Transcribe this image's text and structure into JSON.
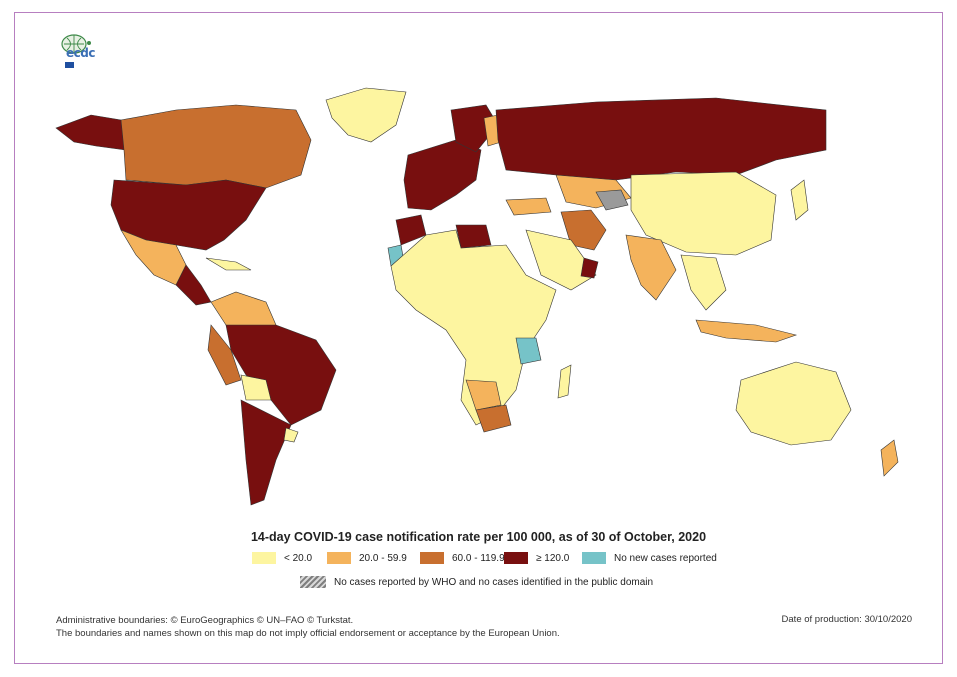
{
  "title": "14-day COVID-19 case notification rate per 100 000, as of 30 of October, 2020",
  "logo_text": "ecdc",
  "legend": [
    {
      "label": "< 20.0",
      "color": "#fdf5a0"
    },
    {
      "label": "20.0 - 59.9",
      "color": "#f4b35c"
    },
    {
      "label": "60.0 - 119.9",
      "color": "#c86f2f"
    },
    {
      "label": "≥ 120.0",
      "color": "#780f0f"
    },
    {
      "label": "No new cases reported",
      "color": "#76c3c8"
    }
  ],
  "hatch_label": "No cases reported by WHO and no cases identified in the public domain",
  "footer": {
    "boundaries": "Administrative boundaries: © EuroGeographics © UN–FAO © Turkstat.",
    "disclaimer": "The boundaries and names shown on this map do not imply official endorsement or acceptance by the European Union.",
    "production_date": "Date of production: 30/10/2020"
  },
  "colors": {
    "low": "#fdf5a0",
    "mid": "#f4b35c",
    "high": "#c86f2f",
    "very_high": "#780f0f",
    "none": "#76c3c8",
    "frame": "#b77fc0"
  }
}
